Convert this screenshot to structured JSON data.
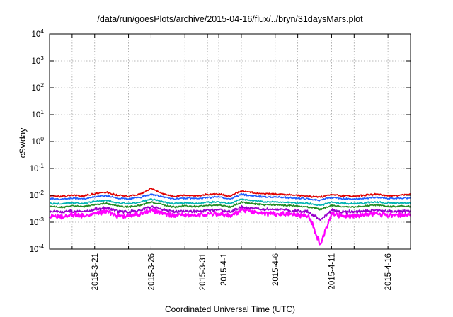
{
  "chart_data": {
    "type": "line",
    "title": "/data/run/goesPlots/archive/2015-04-16/flux/../bryn/31daysMars.plot",
    "xlabel": "Coordinated Universal Time (UTC)",
    "ylabel": "cSv/day",
    "y_scale": "log",
    "ylim": [
      0.0001,
      10000
    ],
    "xlim": [
      "2015-03-17",
      "2015-04-18"
    ],
    "grid": true,
    "legend": "none",
    "y_ticks": [
      {
        "base": "10",
        "exp": "-4",
        "value": 0.0001
      },
      {
        "base": "10",
        "exp": "-3",
        "value": 0.001
      },
      {
        "base": "10",
        "exp": "-2",
        "value": 0.01
      },
      {
        "base": "10",
        "exp": "-1",
        "value": 0.1
      },
      {
        "base": "10",
        "exp": "0",
        "value": 1
      },
      {
        "base": "10",
        "exp": "1",
        "value": 10
      },
      {
        "base": "10",
        "exp": "2",
        "value": 100
      },
      {
        "base": "10",
        "exp": "3",
        "value": 1000
      },
      {
        "base": "10",
        "exp": "4",
        "value": 10000
      }
    ],
    "x_ticks": [
      "2015-3-21",
      "2015-3-26",
      "2015-3-31",
      "2015-4-1",
      "2015-4-6",
      "2015-4-11",
      "2015-4-16"
    ],
    "x_tick_dates": [
      "2015-03-21",
      "2015-03-26",
      "2015-03-31",
      "2015-04-01",
      "2015-04-06",
      "2015-04-11",
      "2015-04-16"
    ],
    "x_gridlines": [
      "2015-03-19",
      "2015-03-21",
      "2015-03-24",
      "2015-03-26",
      "2015-03-29",
      "2015-03-31",
      "2015-04-01",
      "2015-04-03",
      "2015-04-06",
      "2015-04-08",
      "2015-04-11",
      "2015-04-13",
      "2015-04-16"
    ],
    "series": [
      {
        "color": "#ff00ff",
        "start": "2015-03-17",
        "step_days": 1,
        "values": [
          0.0018,
          0.0016,
          0.0019,
          0.0017,
          0.0022,
          0.0025,
          0.0018,
          0.0017,
          0.002,
          0.0028,
          0.0022,
          0.0017,
          0.0019,
          0.0018,
          0.002,
          0.0021,
          0.0017,
          0.0028,
          0.0024,
          0.0022,
          0.0021,
          0.002,
          0.0019,
          0.0017,
          0.00015,
          0.002,
          0.0018,
          0.0017,
          0.0019,
          0.0021,
          0.0018,
          0.0019,
          0.0018
        ]
      },
      {
        "color": "#9900cc",
        "start": "2015-03-17",
        "step_days": 1,
        "values": [
          0.0025,
          0.0024,
          0.0026,
          0.0025,
          0.003,
          0.0034,
          0.0026,
          0.0024,
          0.0028,
          0.0038,
          0.003,
          0.0024,
          0.0026,
          0.0025,
          0.0028,
          0.0029,
          0.0024,
          0.0038,
          0.0033,
          0.003,
          0.0029,
          0.0028,
          0.0026,
          0.0024,
          0.0012,
          0.0028,
          0.0025,
          0.0024,
          0.0026,
          0.0029,
          0.0025,
          0.0026,
          0.0025
        ]
      },
      {
        "color": "#228b22",
        "start": "2015-03-17",
        "step_days": 1,
        "values": [
          0.0038,
          0.0036,
          0.004,
          0.0038,
          0.0045,
          0.005,
          0.004,
          0.0037,
          0.0042,
          0.0056,
          0.0045,
          0.0037,
          0.004,
          0.0038,
          0.0042,
          0.0044,
          0.0037,
          0.0056,
          0.0049,
          0.0045,
          0.0044,
          0.0042,
          0.004,
          0.0037,
          0.003,
          0.0042,
          0.0038,
          0.0037,
          0.004,
          0.0044,
          0.0038,
          0.004,
          0.0038
        ]
      },
      {
        "color": "#00b3b3",
        "start": "2015-03-17",
        "step_days": 1,
        "values": [
          0.005,
          0.0048,
          0.0052,
          0.005,
          0.0058,
          0.0065,
          0.0052,
          0.0049,
          0.0055,
          0.0072,
          0.0058,
          0.0049,
          0.0052,
          0.005,
          0.0055,
          0.0057,
          0.0049,
          0.0072,
          0.0063,
          0.0058,
          0.0057,
          0.0055,
          0.0052,
          0.0049,
          0.0042,
          0.0055,
          0.005,
          0.0049,
          0.0052,
          0.0057,
          0.005,
          0.0052,
          0.005
        ]
      },
      {
        "color": "#1f5fff",
        "start": "2015-03-17",
        "step_days": 1,
        "values": [
          0.0075,
          0.0072,
          0.0078,
          0.0075,
          0.0088,
          0.0098,
          0.0078,
          0.0073,
          0.0083,
          0.011,
          0.0088,
          0.0073,
          0.0078,
          0.0075,
          0.0083,
          0.0086,
          0.0073,
          0.011,
          0.0095,
          0.0088,
          0.0086,
          0.0083,
          0.0078,
          0.0073,
          0.0065,
          0.0083,
          0.0075,
          0.0073,
          0.0078,
          0.0086,
          0.0075,
          0.0078,
          0.008
        ]
      },
      {
        "color": "#e00000",
        "start": "2015-03-17",
        "step_days": 1,
        "values": [
          0.0095,
          0.009,
          0.01,
          0.0095,
          0.0115,
          0.013,
          0.01,
          0.0092,
          0.0108,
          0.018,
          0.0115,
          0.0092,
          0.01,
          0.0095,
          0.0108,
          0.0112,
          0.0092,
          0.015,
          0.0125,
          0.0115,
          0.0112,
          0.0108,
          0.01,
          0.0092,
          0.0085,
          0.0108,
          0.0095,
          0.0092,
          0.01,
          0.0112,
          0.0095,
          0.01,
          0.011
        ]
      }
    ]
  }
}
